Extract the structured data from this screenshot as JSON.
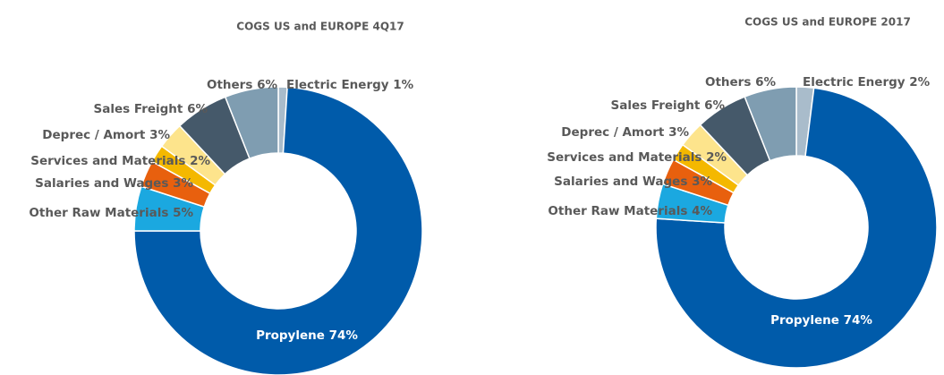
{
  "chart_data": [
    {
      "type": "pie",
      "donut": true,
      "title": "COGS US and EUROPE 4Q17",
      "categories": [
        "Electric Energy",
        "Propylene",
        "Other Raw Materials",
        "Salaries and Wages",
        "Services and Materials",
        "Deprec / Amort",
        "Sales Freight",
        "Others"
      ],
      "values": [
        1,
        74,
        5,
        3,
        2,
        3,
        6,
        6
      ],
      "value_labels": [
        "1%",
        "74%",
        "5%",
        "3%",
        "2%",
        "3%",
        "6%",
        "6%"
      ],
      "colors": [
        "#a9bccb",
        "#005baa",
        "#1ba8e0",
        "#e8600e",
        "#f4b800",
        "#fde48c",
        "#45596a",
        "#7f9db1"
      ]
    },
    {
      "type": "pie",
      "donut": true,
      "title": "COGS US and EUROPE 2017",
      "categories": [
        "Electric Energy",
        "Propylene",
        "Other Raw Materials",
        "Salaries and Wages",
        "Services and Materials",
        "Deprec / Amort",
        "Sales Freight",
        "Others"
      ],
      "values": [
        2,
        74,
        4,
        3,
        2,
        3,
        6,
        6
      ],
      "value_labels": [
        "2%",
        "74%",
        "4%",
        "3%",
        "2%",
        "3%",
        "6%",
        "6%"
      ],
      "colors": [
        "#a9bccb",
        "#005baa",
        "#1ba8e0",
        "#e8600e",
        "#f4b800",
        "#fde48c",
        "#45596a",
        "#7f9db1"
      ]
    }
  ]
}
